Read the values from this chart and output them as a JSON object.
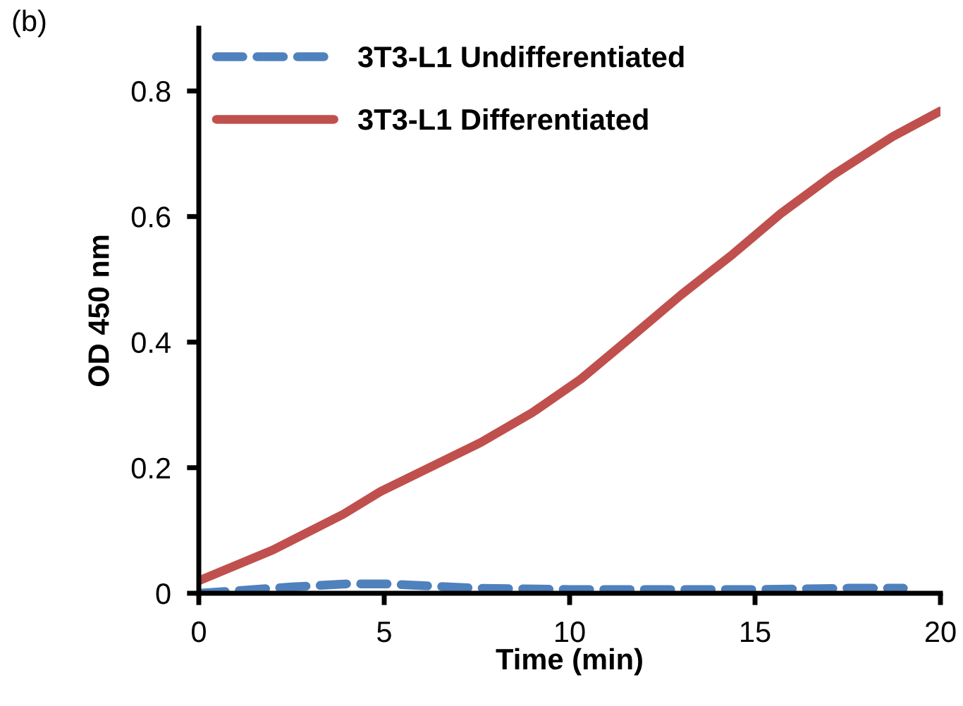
{
  "chart_data": {
    "type": "line",
    "xlabel": "Time (min)",
    "ylabel": "OD 450 nm",
    "annotations": [
      "(b)"
    ],
    "xlim": [
      0,
      20
    ],
    "xticks": [
      0,
      5,
      10,
      15,
      20
    ],
    "ylim": [
      0,
      0.9
    ],
    "yticks": [
      0,
      0.2,
      0.4,
      0.6,
      0.8
    ],
    "grid": false,
    "legend": "top left",
    "series": [
      {
        "name": "3T3-L1 Undifferentiated",
        "color": "#4f81bd",
        "line_style": "dashed",
        "x": [
          0,
          2.5,
          4,
          5,
          7.5,
          10,
          12.5,
          15,
          17.5,
          19
        ],
        "values": [
          0,
          0.01,
          0.015,
          0.015,
          0.008,
          0.006,
          0.006,
          0.006,
          0.008,
          0.008
        ]
      },
      {
        "name": "3T3-L1 Differentiated",
        "color": "#c0504d",
        "line_style": "solid",
        "x": [
          0,
          2,
          3.9,
          4.9,
          7.6,
          9,
          10.3,
          11.7,
          13,
          14.4,
          15.7,
          17.1,
          18.7,
          20
        ],
        "values": [
          0.02,
          0.069,
          0.126,
          0.162,
          0.24,
          0.288,
          0.341,
          0.41,
          0.475,
          0.54,
          0.605,
          0.666,
          0.727,
          0.768
        ]
      }
    ]
  }
}
